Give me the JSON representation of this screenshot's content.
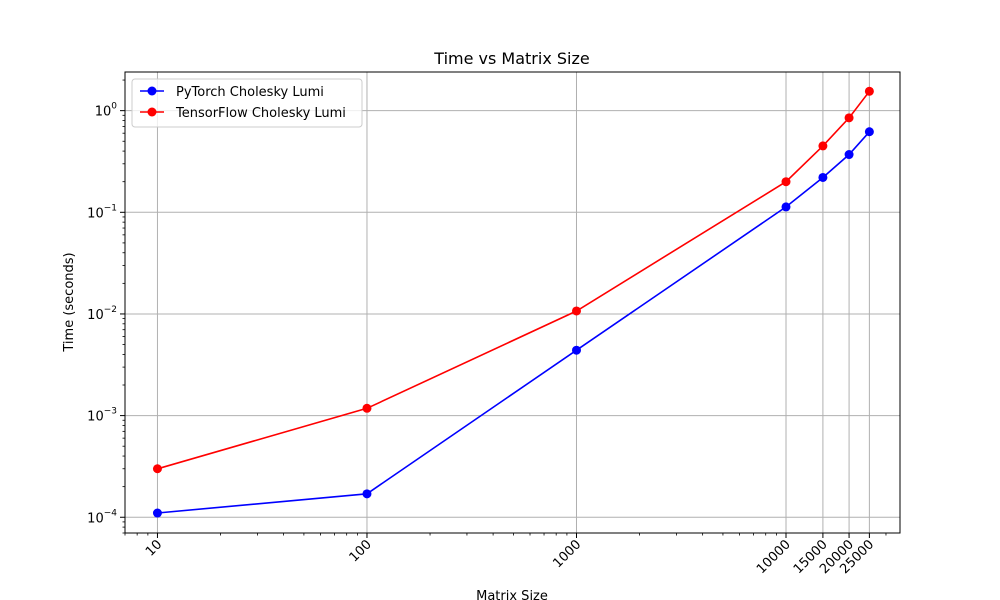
{
  "chart_data": {
    "type": "line",
    "title": "Time vs Matrix Size",
    "xlabel": "Matrix Size",
    "ylabel": "Time (seconds)",
    "x_scale": "log",
    "y_scale": "log",
    "xlim": [
      7,
      35000
    ],
    "ylim": [
      7e-05,
      2.4
    ],
    "x": [
      10,
      100,
      1000,
      10000,
      15000,
      20000,
      25000
    ],
    "x_tick_labels": [
      "10",
      "100",
      "1000",
      "10000",
      "15000",
      "20000",
      "25000"
    ],
    "y_ticks": [
      {
        "value": 0.0001,
        "base": "10",
        "exp": "−4"
      },
      {
        "value": 0.001,
        "base": "10",
        "exp": "−3"
      },
      {
        "value": 0.01,
        "base": "10",
        "exp": "−2"
      },
      {
        "value": 0.1,
        "base": "10",
        "exp": "−1"
      },
      {
        "value": 1,
        "base": "10",
        "exp": "0"
      }
    ],
    "grid": true,
    "legend_position": "top-left",
    "series": [
      {
        "name": "PyTorch Cholesky Lumi",
        "color": "#0000ff",
        "marker": "circle",
        "values": [
          0.00011,
          0.00017,
          0.0044,
          0.113,
          0.22,
          0.37,
          0.62
        ]
      },
      {
        "name": "TensorFlow Cholesky Lumi",
        "color": "#ff0000",
        "marker": "circle",
        "values": [
          0.0003,
          0.00118,
          0.0107,
          0.2,
          0.45,
          0.85,
          1.55
        ]
      }
    ]
  }
}
